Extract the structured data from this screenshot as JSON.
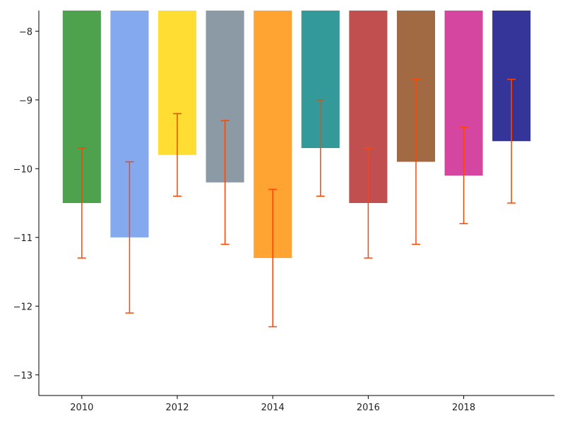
{
  "chart_data": {
    "type": "bar",
    "title": "",
    "xlabel": "",
    "ylabel": "",
    "x": [
      2010,
      2011,
      2012,
      2013,
      2014,
      2015,
      2016,
      2017,
      2018,
      2019
    ],
    "values": [
      -10.5,
      -11.0,
      -9.8,
      -10.2,
      -11.3,
      -9.7,
      -10.5,
      -9.9,
      -10.1,
      -9.6
    ],
    "error_low": [
      -11.3,
      -12.1,
      -10.4,
      -11.1,
      -12.3,
      -10.4,
      -11.3,
      -11.1,
      -10.8,
      -10.5
    ],
    "error_high": [
      -9.7,
      -9.9,
      -9.2,
      -9.3,
      -10.3,
      -9.0,
      -9.7,
      -8.7,
      -9.4,
      -8.7
    ],
    "bar_colors": [
      "#4ea24e",
      "#84a9ef",
      "#ffdd33",
      "#8c9aa6",
      "#ffa333",
      "#339a99",
      "#c14f4f",
      "#a26a42",
      "#d546a0",
      "#353599"
    ],
    "error_color": "#ff4500",
    "xlim": [
      2009.1,
      2019.9
    ],
    "ylim": [
      -13.3,
      -7.7
    ],
    "xticks": [
      2010,
      2012,
      2014,
      2016,
      2018
    ],
    "yticks": [
      -13,
      -12,
      -11,
      -10,
      -9,
      -8
    ],
    "ytick_labels": [
      "−13",
      "−12",
      "−11",
      "−10",
      "−9",
      "−8"
    ],
    "grid": false,
    "legend": "none",
    "bar_top": "ylim-top"
  }
}
